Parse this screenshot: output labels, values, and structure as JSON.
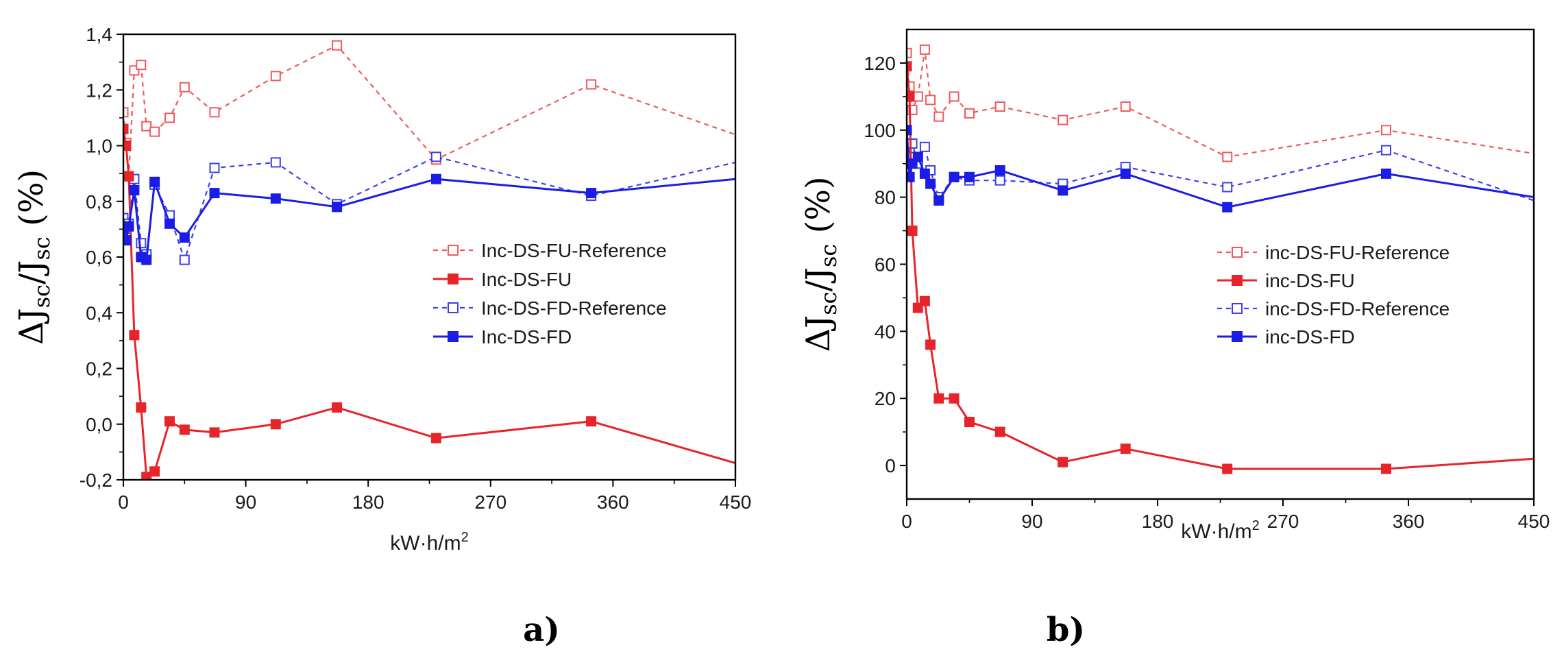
{
  "colors": {
    "red": "#e8242b",
    "red_light": "#f0797c",
    "blue": "#1b1de6",
    "blue_light": "#6a6cef",
    "axis": "#000000"
  },
  "chart_data": [
    {
      "type": "line",
      "panel_label": "a)",
      "xlabel": "kW·h/m",
      "xlabel_sup": "2",
      "ylabel": {
        "prefix": "ΔJ",
        "sub1": "sc",
        "mid": "/J",
        "sub2": "sc",
        "suffix": " (%)"
      },
      "xlim": [
        0,
        450
      ],
      "ylim": [
        -0.2,
        1.4
      ],
      "x_ticks": [
        0,
        90,
        180,
        270,
        360,
        450
      ],
      "y_ticks": [
        -0.2,
        0.0,
        0.2,
        0.4,
        0.6,
        0.8,
        1.0,
        1.2,
        1.4
      ],
      "x_tick_labels": [
        "0",
        "90",
        "180",
        "270",
        "360",
        "450"
      ],
      "y_tick_labels": [
        "-0,2",
        "0,0",
        "0,2",
        "0,4",
        "0,6",
        "0,8",
        "1,0",
        "1,2",
        "1,4"
      ],
      "legend_position": "right-middle",
      "series": [
        {
          "name": "Inc-DS-FU-Reference",
          "color": "#ef5a5e",
          "dashed": true,
          "filled": false,
          "x": [
            0,
            2,
            4,
            8,
            13,
            17,
            23,
            34,
            45,
            67,
            112,
            157,
            230,
            344,
            450
          ],
          "y": [
            1.12,
            1.01,
            0.89,
            1.27,
            1.29,
            1.07,
            1.05,
            1.1,
            1.21,
            1.12,
            1.25,
            1.36,
            0.95,
            1.22,
            1.04
          ]
        },
        {
          "name": "Inc-DS-FU",
          "color": "#e8242b",
          "dashed": false,
          "filled": true,
          "x": [
            0,
            2,
            4,
            8,
            13,
            17,
            23,
            34,
            45,
            67,
            112,
            157,
            230,
            344,
            450
          ],
          "y": [
            1.06,
            1.0,
            0.89,
            0.32,
            0.06,
            -0.19,
            -0.17,
            0.01,
            -0.02,
            -0.03,
            0.0,
            0.06,
            -0.05,
            0.01,
            -0.14
          ]
        },
        {
          "name": "Inc-DS-FD-Reference",
          "color": "#3d3fec",
          "dashed": true,
          "filled": false,
          "x": [
            0,
            2,
            4,
            8,
            13,
            17,
            23,
            34,
            45,
            67,
            112,
            157,
            230,
            344,
            450
          ],
          "y": [
            0.74,
            0.67,
            0.72,
            0.88,
            0.65,
            0.61,
            0.86,
            0.75,
            0.59,
            0.92,
            0.94,
            0.79,
            0.96,
            0.82,
            0.94
          ]
        },
        {
          "name": "Inc-DS-FD",
          "color": "#1b1de6",
          "dashed": false,
          "filled": true,
          "x": [
            0,
            2,
            4,
            8,
            13,
            17,
            23,
            34,
            45,
            67,
            112,
            157,
            230,
            344,
            450
          ],
          "y": [
            0.7,
            0.66,
            0.71,
            0.84,
            0.6,
            0.59,
            0.87,
            0.72,
            0.67,
            0.83,
            0.81,
            0.78,
            0.88,
            0.83,
            0.88
          ]
        }
      ]
    },
    {
      "type": "line",
      "panel_label": "b)",
      "xlabel": "kW·h/m",
      "xlabel_sup": "2",
      "ylabel": {
        "prefix": "ΔJ",
        "sub1": "sc",
        "mid": "/J",
        "sub2": "sc",
        "suffix": " (%)"
      },
      "xlim": [
        0,
        450
      ],
      "ylim": [
        -10,
        130
      ],
      "x_ticks": [
        0,
        90,
        180,
        270,
        360,
        450
      ],
      "y_ticks": [
        0,
        20,
        40,
        60,
        80,
        100,
        120
      ],
      "x_tick_labels": [
        "0",
        "90",
        "180",
        "270",
        "360",
        "450"
      ],
      "y_tick_labels": [
        "0",
        "20",
        "40",
        "60",
        "80",
        "100",
        "120"
      ],
      "legend_position": "right-middle",
      "series": [
        {
          "name": "inc-DS-FU-Reference",
          "color": "#ef5a5e",
          "dashed": true,
          "filled": false,
          "x": [
            0,
            2,
            4,
            8,
            13,
            17,
            23,
            34,
            45,
            67,
            112,
            157,
            230,
            344,
            450
          ],
          "y": [
            123,
            113,
            106,
            110,
            124,
            109,
            104,
            110,
            105,
            107,
            103,
            107,
            92,
            100,
            93
          ]
        },
        {
          "name": "inc-DS-FU",
          "color": "#e8242b",
          "dashed": false,
          "filled": true,
          "x": [
            0,
            2,
            4,
            8,
            13,
            17,
            23,
            34,
            45,
            67,
            112,
            157,
            230,
            344,
            450
          ],
          "y": [
            119,
            110,
            70,
            47,
            49,
            36,
            20,
            20,
            13,
            10,
            1,
            5,
            -1,
            -1,
            2
          ]
        },
        {
          "name": "inc-DS-FD-Reference",
          "color": "#3d3fec",
          "dashed": true,
          "filled": false,
          "x": [
            0,
            2,
            4,
            8,
            13,
            17,
            23,
            34,
            45,
            67,
            112,
            157,
            230,
            344,
            450
          ],
          "y": [
            100,
            92,
            96,
            90,
            95,
            88,
            80,
            86,
            85,
            85,
            84,
            89,
            83,
            94,
            79
          ]
        },
        {
          "name": "inc-DS-FD",
          "color": "#1b1de6",
          "dashed": false,
          "filled": true,
          "x": [
            0,
            2,
            4,
            8,
            13,
            17,
            23,
            34,
            45,
            67,
            112,
            157,
            230,
            344,
            450
          ],
          "y": [
            100,
            86,
            90,
            92,
            87,
            84,
            79,
            86,
            86,
            88,
            82,
            87,
            77,
            87,
            80
          ]
        }
      ]
    }
  ]
}
